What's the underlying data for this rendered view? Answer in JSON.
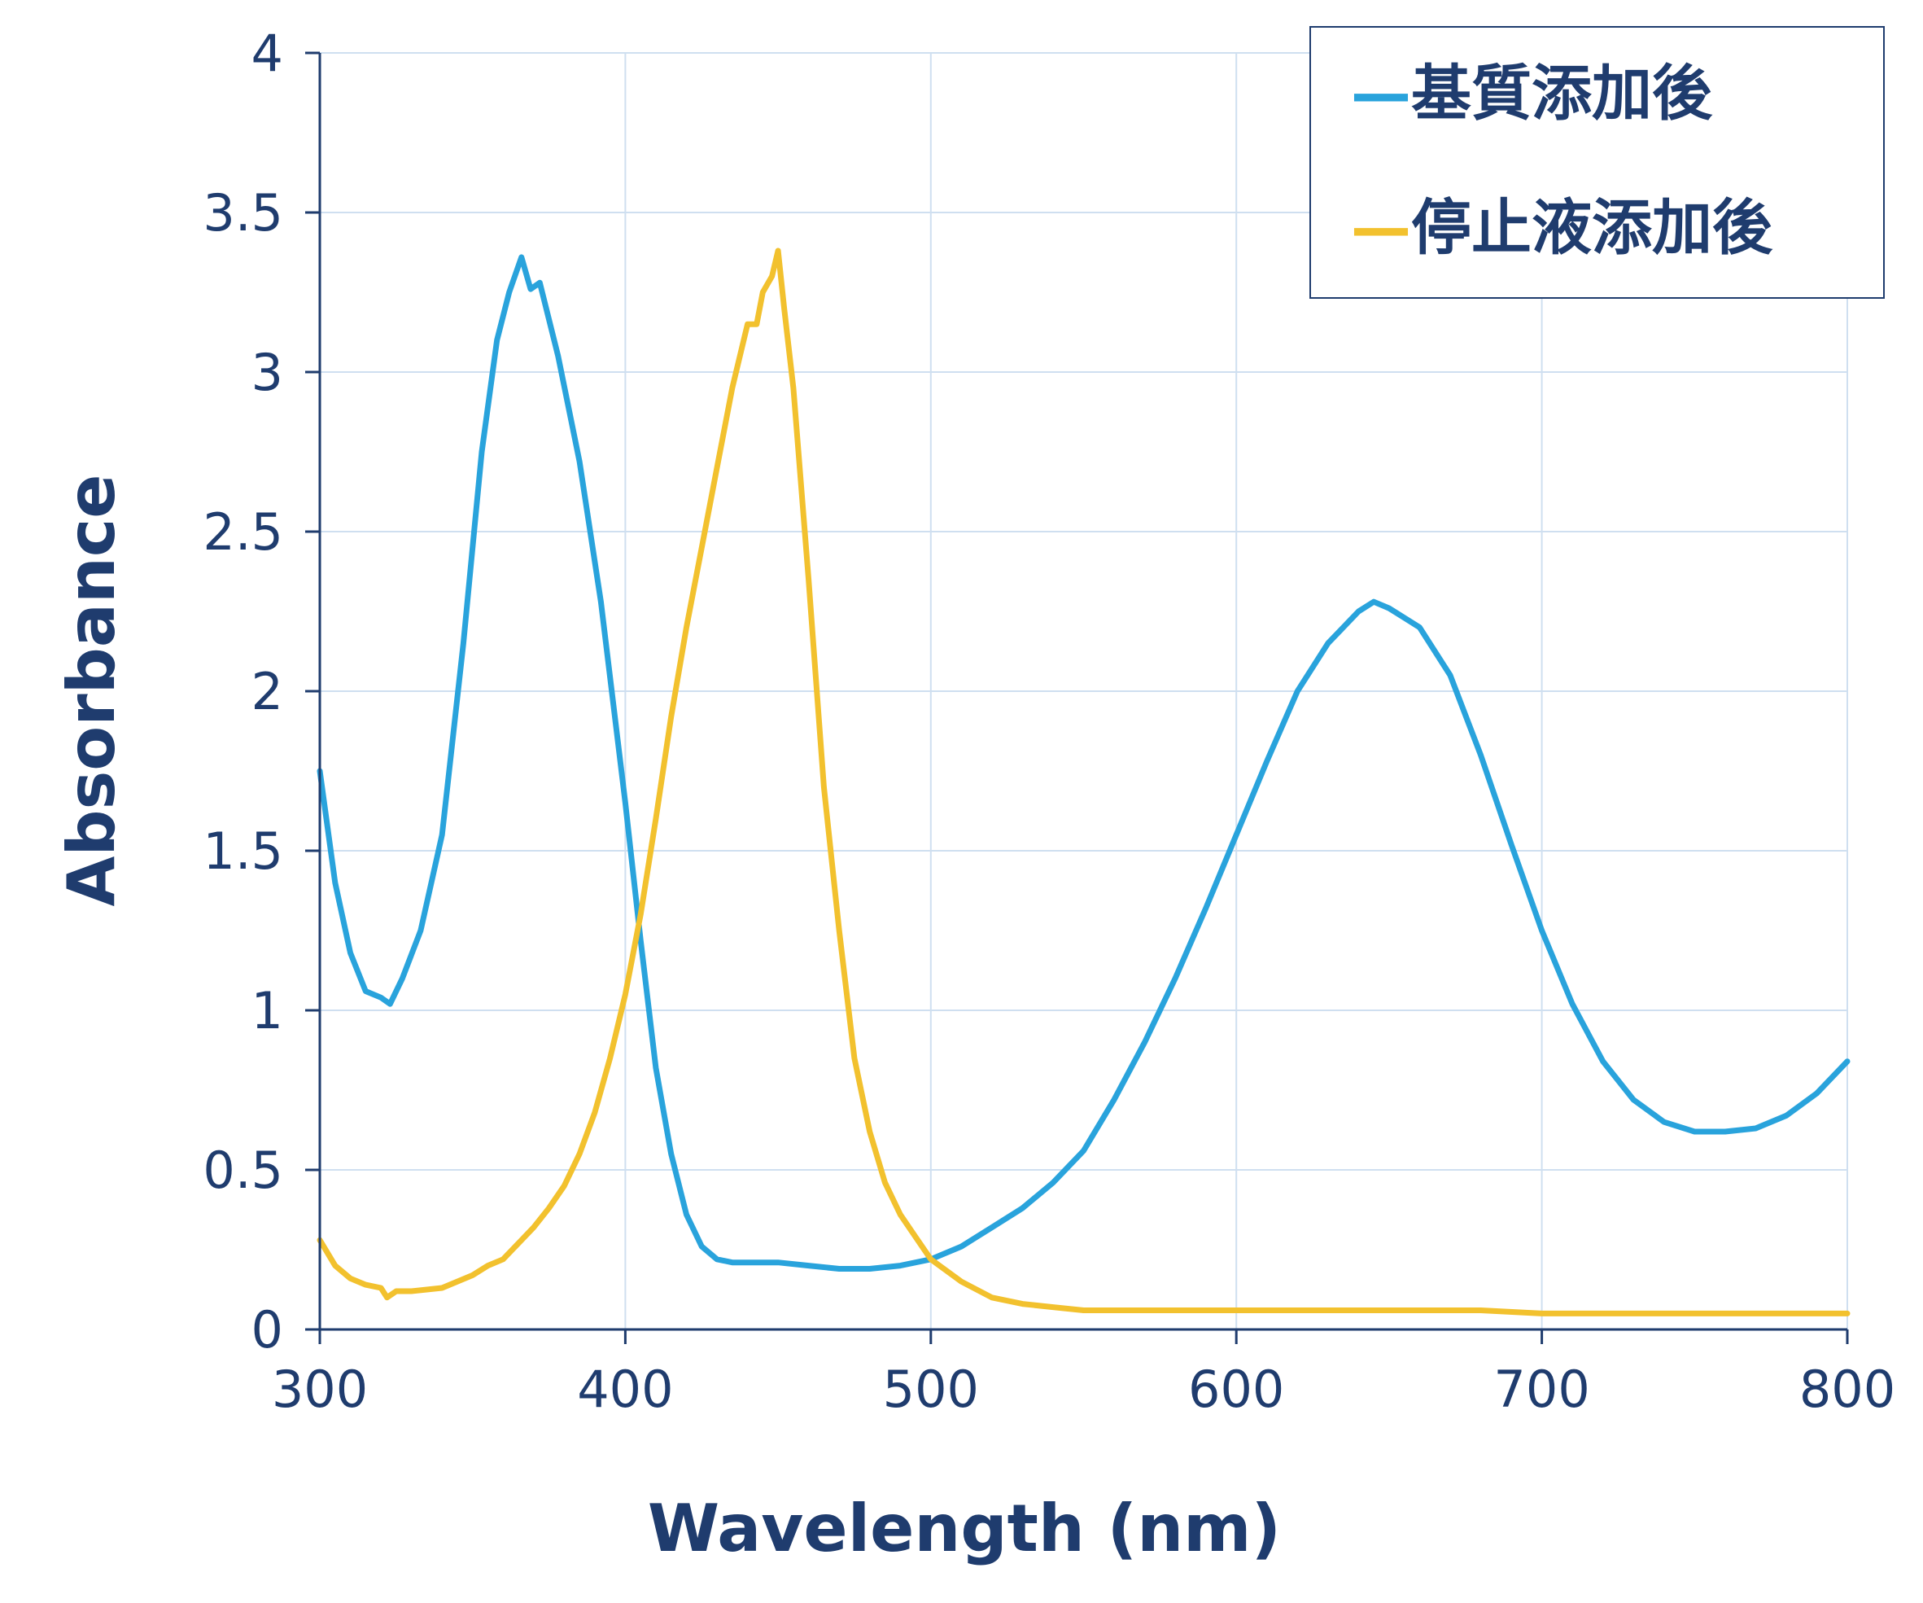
{
  "chart_data": {
    "type": "line",
    "title": "",
    "xlabel": "Wavelength (nm)",
    "ylabel": "Absorbance",
    "xlim": [
      300,
      800
    ],
    "ylim": [
      0,
      4
    ],
    "xticks": [
      300,
      400,
      500,
      600,
      700,
      800
    ],
    "yticks": [
      0,
      0.5,
      1,
      1.5,
      2,
      2.5,
      3,
      3.5,
      4
    ],
    "xtick_labels": [
      "300",
      "400",
      "500",
      "600",
      "700",
      "800"
    ],
    "ytick_labels": [
      "0",
      "0.5",
      "1",
      "1.5",
      "2",
      "2.5",
      "3",
      "3.5",
      "4"
    ],
    "grid": true,
    "legend_position": "top-right",
    "series": [
      {
        "name": "基質添加後",
        "legend_label": "—基質添加後",
        "color": "#29a3dc",
        "x": [
          300,
          305,
          310,
          315,
          320,
          323,
          327,
          333,
          340,
          347,
          353,
          358,
          362,
          366,
          369,
          372,
          378,
          385,
          392,
          400,
          405,
          410,
          415,
          420,
          425,
          430,
          435,
          440,
          450,
          460,
          470,
          480,
          490,
          500,
          510,
          520,
          530,
          540,
          550,
          560,
          570,
          580,
          590,
          600,
          610,
          620,
          630,
          640,
          645,
          650,
          660,
          670,
          680,
          690,
          700,
          710,
          720,
          730,
          740,
          750,
          760,
          770,
          780,
          790,
          800
        ],
        "values": [
          1.75,
          1.4,
          1.18,
          1.06,
          1.04,
          1.02,
          1.1,
          1.25,
          1.55,
          2.15,
          2.75,
          3.1,
          3.25,
          3.36,
          3.26,
          3.28,
          3.05,
          2.72,
          2.28,
          1.65,
          1.22,
          0.82,
          0.55,
          0.36,
          0.26,
          0.22,
          0.21,
          0.21,
          0.21,
          0.2,
          0.19,
          0.19,
          0.2,
          0.22,
          0.26,
          0.32,
          0.38,
          0.46,
          0.56,
          0.72,
          0.9,
          1.1,
          1.32,
          1.55,
          1.78,
          2.0,
          2.15,
          2.25,
          2.28,
          2.26,
          2.2,
          2.05,
          1.8,
          1.52,
          1.25,
          1.02,
          0.84,
          0.72,
          0.65,
          0.62,
          0.62,
          0.63,
          0.67,
          0.74,
          0.84
        ]
      },
      {
        "name": "停止液添加後",
        "legend_label": "—停止液添加後",
        "color": "#f2c12e",
        "x": [
          300,
          305,
          310,
          315,
          320,
          322,
          325,
          330,
          340,
          350,
          355,
          360,
          365,
          370,
          375,
          380,
          385,
          390,
          395,
          400,
          405,
          410,
          415,
          420,
          425,
          430,
          435,
          440,
          443,
          445,
          448,
          450,
          452,
          455,
          460,
          465,
          470,
          475,
          480,
          485,
          490,
          495,
          500,
          510,
          520,
          530,
          540,
          550,
          560,
          570,
          580,
          600,
          650,
          680,
          700,
          750,
          800
        ],
        "values": [
          0.28,
          0.2,
          0.16,
          0.14,
          0.13,
          0.1,
          0.12,
          0.12,
          0.13,
          0.17,
          0.2,
          0.22,
          0.27,
          0.32,
          0.38,
          0.45,
          0.55,
          0.68,
          0.85,
          1.05,
          1.3,
          1.6,
          1.92,
          2.2,
          2.45,
          2.7,
          2.95,
          3.15,
          3.15,
          3.25,
          3.3,
          3.38,
          3.2,
          2.95,
          2.35,
          1.7,
          1.25,
          0.85,
          0.62,
          0.46,
          0.36,
          0.29,
          0.22,
          0.15,
          0.1,
          0.08,
          0.07,
          0.06,
          0.06,
          0.06,
          0.06,
          0.06,
          0.06,
          0.06,
          0.05,
          0.05,
          0.05
        ]
      }
    ]
  }
}
